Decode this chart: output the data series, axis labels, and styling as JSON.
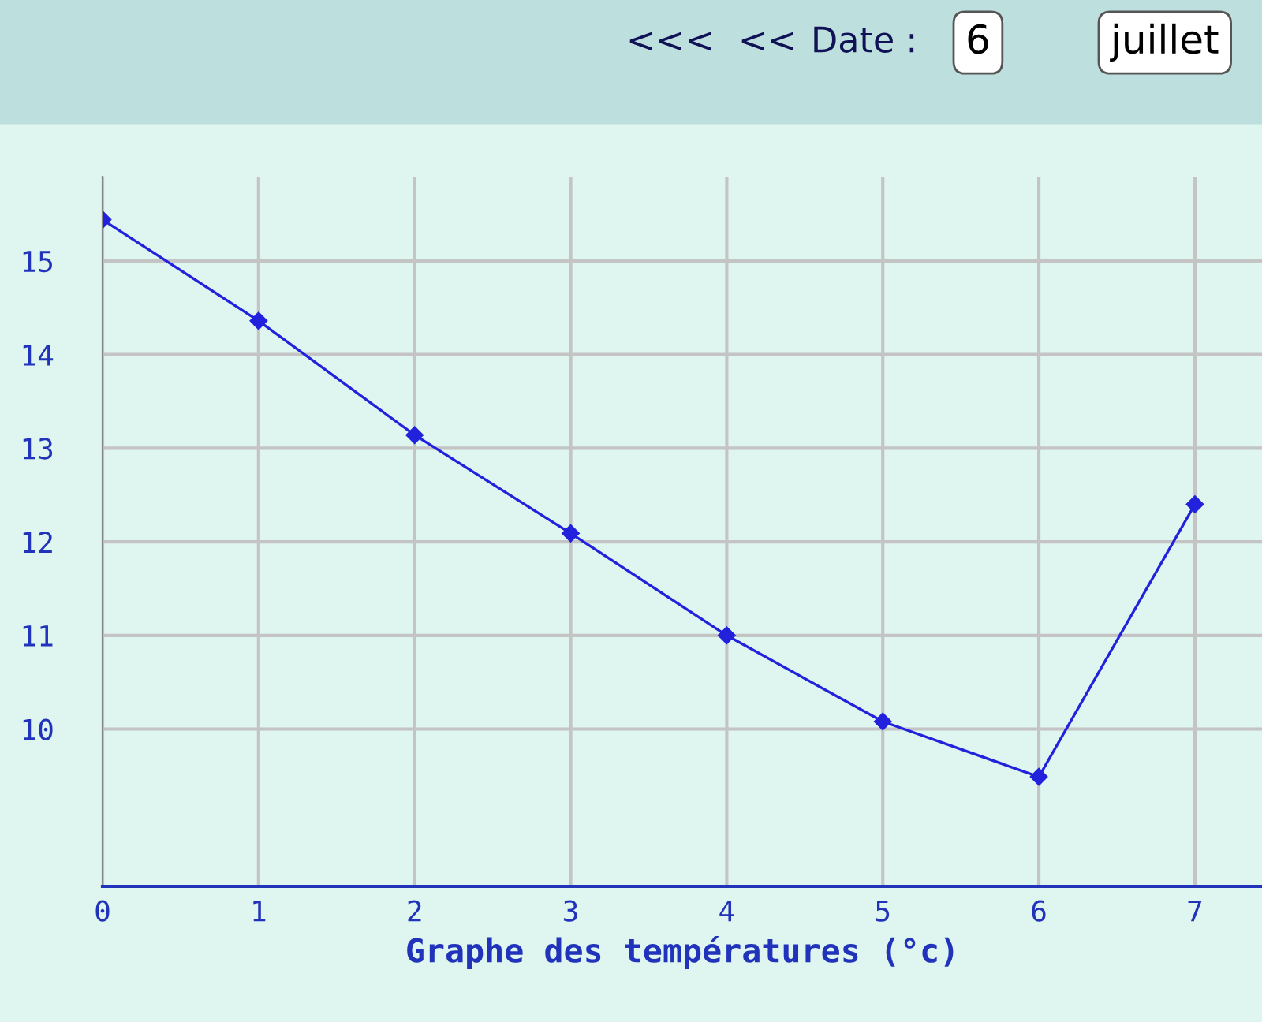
{
  "chart_data": {
    "type": "line",
    "xlabel": "Graphe des températures (°c)",
    "annotations": [
      "<<<",
      "<<",
      "Date :",
      "6",
      "juillet"
    ],
    "x": [
      0,
      1,
      2,
      3,
      4,
      5,
      6,
      7
    ],
    "series": [
      {
        "color": "#2222dd",
        "values": [
          15.44,
          14.36,
          13.14,
          12.09,
          11.0,
          10.08,
          9.49,
          12.4
        ]
      }
    ],
    "xlim": [
      0,
      7.43
    ],
    "ylim": [
      8.32,
      15.9
    ],
    "xticks": [
      0,
      1,
      2,
      3,
      4,
      5,
      6,
      7
    ],
    "yticks": [
      10,
      11,
      12,
      13,
      14,
      15
    ],
    "grid": true,
    "marker": "diamond",
    "line_style": "solid",
    "legend": false
  }
}
